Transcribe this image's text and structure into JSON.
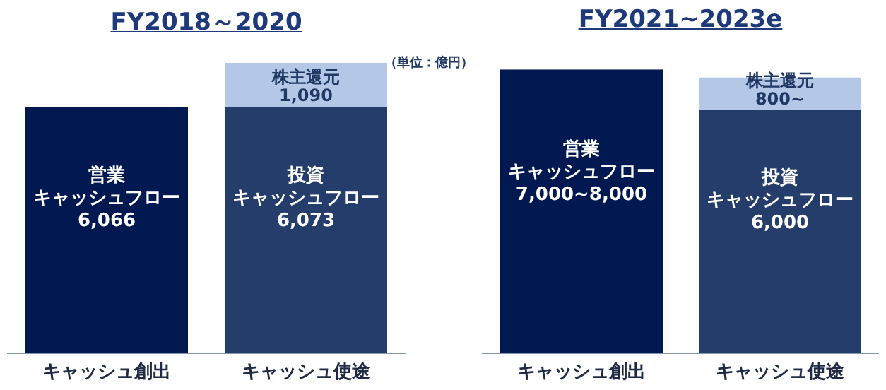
{
  "chart_data": [
    {
      "type": "bar",
      "title": "FY2018～2020",
      "categories": [
        "キャッシュ創出",
        "キャッシュ使途"
      ],
      "stacked": true,
      "legend": false,
      "annotations": [
        "（単位：億円）"
      ],
      "series": [
        {
          "name": "営業キャッシュフロー",
          "color": "#021850",
          "values": [
            6066,
            null
          ],
          "value_labels": [
            "6,066",
            null
          ]
        },
        {
          "name": "投資キャッシュフロー",
          "color": "#253d6b",
          "values": [
            null,
            6073
          ],
          "value_labels": [
            null,
            "6,073"
          ]
        },
        {
          "name": "株主還元",
          "color": "#b4c7e7",
          "values": [
            null,
            1090
          ],
          "value_labels": [
            null,
            "1,090"
          ]
        }
      ]
    },
    {
      "type": "bar",
      "title": "FY2021~2023e",
      "categories": [
        "キャッシュ創出",
        "キャッシュ使途"
      ],
      "stacked": true,
      "legend": false,
      "series": [
        {
          "name": "営業キャッシュフロー",
          "color": "#021850",
          "values": [
            7000,
            null
          ],
          "value_labels": [
            "7,000~8,000",
            null
          ]
        },
        {
          "name": "投資キャッシュフロー",
          "color": "#253d6b",
          "values": [
            null,
            6000
          ],
          "value_labels": [
            null,
            "6,000"
          ]
        },
        {
          "name": "株主還元",
          "color": "#b4c7e7",
          "values": [
            null,
            800
          ],
          "value_labels": [
            null,
            "800~"
          ]
        }
      ]
    }
  ]
}
